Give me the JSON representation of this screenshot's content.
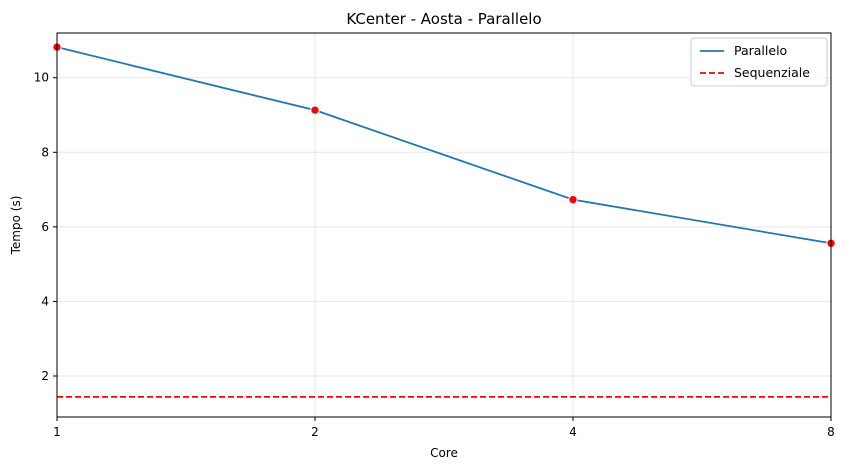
{
  "chart_data": {
    "type": "line",
    "title": "KCenter - Aosta - Parallelo",
    "xlabel": "Core",
    "ylabel": "Tempo (s)",
    "x": [
      1,
      2,
      4,
      8
    ],
    "x_tick_labels": [
      "1",
      "2",
      "4",
      "8"
    ],
    "x_scale": "log2",
    "xlim": [
      1,
      8
    ],
    "ylim": [
      0.9,
      11.2
    ],
    "y_ticks": [
      2,
      4,
      6,
      8,
      10
    ],
    "grid": true,
    "legend_position": "top-right",
    "series": [
      {
        "name": "Parallelo",
        "values": [
          10.82,
          9.13,
          6.73,
          5.56
        ],
        "color": "#1f77b4",
        "style": "solid",
        "marker_color": "#ff0000"
      },
      {
        "name": "Sequenziale",
        "values": [
          1.44,
          1.44,
          1.44,
          1.44
        ],
        "color": "#ff0000",
        "style": "dashed"
      }
    ]
  }
}
